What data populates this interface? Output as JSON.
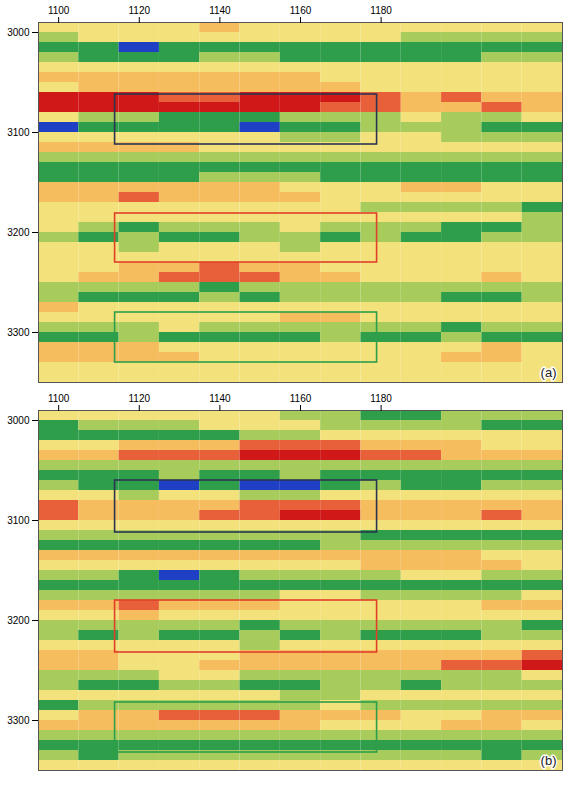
{
  "chart_data": [
    {
      "type": "heatmap",
      "title": "(a)",
      "x": [
        1100,
        1110,
        1120,
        1130,
        1140,
        1150,
        1160,
        1170,
        1180,
        1190,
        1200,
        1210,
        1220
      ],
      "y": [
        2995,
        3005,
        3015,
        3025,
        3035,
        3045,
        3055,
        3065,
        3075,
        3085,
        3095,
        3105,
        3115,
        3125,
        3135,
        3145,
        3155,
        3165,
        3175,
        3185,
        3195,
        3205,
        3215,
        3225,
        3235,
        3245,
        3255,
        3265,
        3275,
        3285,
        3295,
        3305,
        3315,
        3325,
        3335,
        3345
      ],
      "values": [
        [
          0,
          0,
          0,
          0,
          1,
          0,
          0,
          0,
          0,
          0,
          0,
          0,
          0
        ],
        [
          -1,
          0,
          0,
          0,
          0,
          0,
          0,
          0,
          0,
          -1,
          -1,
          -1,
          -1
        ],
        [
          -2,
          -2,
          -3,
          -2,
          -2,
          -2,
          -2,
          -2,
          -2,
          -2,
          -2,
          -2,
          -2
        ],
        [
          -1,
          -2,
          -2,
          -2,
          -1,
          -1,
          -2,
          -2,
          -2,
          -2,
          -2,
          -1,
          -1
        ],
        [
          0,
          0,
          0,
          0,
          0,
          0,
          0,
          0,
          0,
          0,
          0,
          0,
          0
        ],
        [
          1,
          1,
          1,
          1,
          1,
          1,
          1,
          0,
          0,
          0,
          0,
          0,
          0
        ],
        [
          0,
          1,
          1,
          1,
          1,
          1,
          1,
          1,
          0,
          0,
          0,
          0,
          0
        ],
        [
          3,
          3,
          3,
          2,
          2,
          3,
          3,
          3,
          2,
          1,
          2,
          1,
          1
        ],
        [
          3,
          3,
          3,
          3,
          3,
          3,
          3,
          2,
          2,
          1,
          1,
          2,
          1
        ],
        [
          0,
          -1,
          -1,
          -2,
          -2,
          -2,
          -1,
          -1,
          -1,
          0,
          -1,
          -1,
          0
        ],
        [
          -3,
          -2,
          -2,
          -2,
          -2,
          -3,
          -2,
          -2,
          -1,
          -1,
          -1,
          -2,
          -2
        ],
        [
          0,
          0,
          0,
          0,
          0,
          0,
          -1,
          -1,
          0,
          0,
          -1,
          -1,
          -1
        ],
        [
          1,
          1,
          1,
          1,
          0,
          0,
          0,
          0,
          0,
          0,
          0,
          0,
          0
        ],
        [
          -1,
          -1,
          -1,
          -1,
          -1,
          -1,
          -1,
          -1,
          -1,
          -1,
          -1,
          -1,
          -1
        ],
        [
          -2,
          -2,
          -2,
          -2,
          -2,
          -2,
          -2,
          -2,
          -2,
          -2,
          -2,
          -2,
          -2
        ],
        [
          -2,
          -2,
          -2,
          -2,
          -1,
          -1,
          -1,
          -2,
          -2,
          -2,
          -2,
          -2,
          -2
        ],
        [
          1,
          1,
          1,
          1,
          1,
          1,
          0,
          0,
          0,
          1,
          1,
          0,
          0
        ],
        [
          1,
          1,
          2,
          1,
          1,
          1,
          1,
          0,
          0,
          0,
          0,
          0,
          0
        ],
        [
          0,
          0,
          0,
          0,
          0,
          0,
          0,
          0,
          -1,
          -1,
          -1,
          -1,
          -2
        ],
        [
          0,
          0,
          0,
          0,
          0,
          0,
          0,
          0,
          0,
          0,
          0,
          0,
          -1
        ],
        [
          0,
          -1,
          -2,
          -1,
          -1,
          -1,
          0,
          -1,
          -1,
          -1,
          -2,
          -2,
          -1
        ],
        [
          -1,
          -2,
          -1,
          -2,
          -2,
          -1,
          -1,
          -2,
          -1,
          -2,
          -2,
          -1,
          -1
        ],
        [
          0,
          0,
          -1,
          0,
          0,
          0,
          -1,
          0,
          0,
          0,
          0,
          0,
          0
        ],
        [
          0,
          0,
          0,
          0,
          0,
          0,
          0,
          0,
          0,
          0,
          0,
          0,
          0
        ],
        [
          0,
          0,
          1,
          1,
          2,
          1,
          1,
          0,
          0,
          0,
          0,
          0,
          0
        ],
        [
          0,
          1,
          1,
          2,
          2,
          2,
          1,
          1,
          0,
          0,
          0,
          1,
          0
        ],
        [
          -1,
          -1,
          -1,
          -1,
          -2,
          -1,
          -1,
          -1,
          -1,
          -1,
          -1,
          -1,
          -1
        ],
        [
          -1,
          -2,
          -2,
          -2,
          -1,
          -2,
          -1,
          -1,
          -1,
          -1,
          -2,
          -2,
          -1
        ],
        [
          1,
          0,
          0,
          0,
          0,
          0,
          0,
          0,
          0,
          0,
          0,
          0,
          0
        ],
        [
          0,
          0,
          0,
          0,
          0,
          0,
          1,
          1,
          0,
          0,
          0,
          0,
          0
        ],
        [
          -1,
          -1,
          -1,
          0,
          -1,
          -1,
          -1,
          -1,
          -1,
          -1,
          -2,
          -1,
          -1
        ],
        [
          -2,
          -2,
          -1,
          -2,
          -2,
          -2,
          -2,
          -1,
          -2,
          -2,
          -1,
          -2,
          -2
        ],
        [
          1,
          1,
          1,
          0,
          0,
          0,
          0,
          0,
          0,
          0,
          0,
          1,
          0
        ],
        [
          1,
          1,
          1,
          1,
          0,
          0,
          0,
          0,
          0,
          0,
          1,
          1,
          0
        ],
        [
          0,
          0,
          0,
          0,
          0,
          0,
          0,
          0,
          0,
          0,
          0,
          0,
          0
        ],
        [
          0,
          0,
          0,
          0,
          0,
          0,
          0,
          0,
          0,
          0,
          0,
          0,
          0
        ]
      ],
      "zlim": [
        -3,
        3
      ],
      "xlim": [
        1095,
        1225
      ],
      "xticks": [
        1100,
        1120,
        1140,
        1160,
        1180
      ],
      "ylim": [
        2990,
        3350
      ],
      "yticks": [
        3000,
        3100,
        3200,
        3300
      ],
      "boxes": [
        {
          "x1": 1114,
          "x2": 1179,
          "y1": 3062,
          "y2": 3112,
          "color": "#2b3550"
        },
        {
          "x1": 1114,
          "x2": 1179,
          "y1": 3181,
          "y2": 3230,
          "color": "#e0402a"
        },
        {
          "x1": 1114,
          "x2": 1179,
          "y1": 3280,
          "y2": 3330,
          "color": "#2e9e4a"
        }
      ]
    },
    {
      "type": "heatmap",
      "title": "(b)",
      "x": [
        1100,
        1110,
        1120,
        1130,
        1140,
        1150,
        1160,
        1170,
        1180,
        1190,
        1200,
        1210,
        1220
      ],
      "y": [
        2995,
        3005,
        3015,
        3025,
        3035,
        3045,
        3055,
        3065,
        3075,
        3085,
        3095,
        3105,
        3115,
        3125,
        3135,
        3145,
        3155,
        3165,
        3175,
        3185,
        3195,
        3205,
        3215,
        3225,
        3235,
        3245,
        3255,
        3265,
        3275,
        3285,
        3295,
        3305,
        3315,
        3325,
        3335,
        3345
      ],
      "values": [
        [
          0,
          0,
          0,
          0,
          0,
          0,
          -1,
          -1,
          -2,
          -2,
          -1,
          -1,
          -1
        ],
        [
          -2,
          -1,
          -1,
          -1,
          0,
          0,
          0,
          -1,
          -1,
          -1,
          -1,
          -2,
          -2
        ],
        [
          -2,
          -2,
          -2,
          -2,
          -2,
          -1,
          -1,
          0,
          0,
          0,
          0,
          0,
          0
        ],
        [
          0,
          0,
          1,
          1,
          1,
          2,
          2,
          2,
          1,
          1,
          1,
          0,
          0
        ],
        [
          1,
          1,
          2,
          2,
          2,
          3,
          3,
          3,
          2,
          2,
          1,
          1,
          1
        ],
        [
          -1,
          -1,
          -1,
          -1,
          -1,
          -1,
          -1,
          -1,
          -1,
          -1,
          -1,
          -1,
          -1
        ],
        [
          -2,
          -2,
          -2,
          -1,
          -2,
          -2,
          -1,
          -2,
          -2,
          -2,
          -2,
          -2,
          -2
        ],
        [
          -1,
          -2,
          -2,
          -3,
          -2,
          -3,
          -3,
          -2,
          -1,
          -2,
          -2,
          -1,
          -1
        ],
        [
          0,
          0,
          -1,
          0,
          0,
          -1,
          -1,
          0,
          0,
          0,
          0,
          0,
          0
        ],
        [
          2,
          1,
          1,
          1,
          1,
          2,
          2,
          2,
          1,
          1,
          1,
          1,
          1
        ],
        [
          2,
          1,
          1,
          1,
          2,
          2,
          3,
          3,
          1,
          1,
          1,
          2,
          1
        ],
        [
          0,
          0,
          0,
          0,
          0,
          0,
          0,
          0,
          0,
          0,
          0,
          0,
          0
        ],
        [
          -1,
          -1,
          -1,
          -1,
          -1,
          -1,
          -1,
          -1,
          -2,
          -2,
          -2,
          -2,
          -2
        ],
        [
          -2,
          -2,
          -2,
          -2,
          -2,
          -2,
          -2,
          -1,
          -1,
          -1,
          -1,
          -1,
          -1
        ],
        [
          1,
          1,
          1,
          1,
          1,
          1,
          1,
          1,
          1,
          1,
          1,
          0,
          0
        ],
        [
          0,
          0,
          0,
          0,
          0,
          0,
          0,
          0,
          1,
          1,
          1,
          1,
          0
        ],
        [
          -1,
          -1,
          -2,
          -3,
          -2,
          -1,
          -1,
          -1,
          -1,
          0,
          0,
          -1,
          -1
        ],
        [
          -2,
          -2,
          -2,
          -2,
          -2,
          -2,
          -2,
          -2,
          -2,
          -2,
          -2,
          -2,
          -2
        ],
        [
          -1,
          -1,
          -1,
          -1,
          -1,
          -1,
          0,
          0,
          -1,
          -1,
          -1,
          -1,
          0
        ],
        [
          1,
          1,
          2,
          1,
          1,
          1,
          0,
          0,
          0,
          0,
          0,
          1,
          1
        ],
        [
          0,
          0,
          1,
          0,
          0,
          0,
          0,
          0,
          0,
          0,
          0,
          0,
          0
        ],
        [
          -1,
          -1,
          -1,
          -1,
          -1,
          -2,
          -1,
          -1,
          -1,
          -1,
          -1,
          -1,
          -2
        ],
        [
          -1,
          -2,
          -1,
          -2,
          -2,
          -1,
          -2,
          -1,
          -2,
          -2,
          -2,
          -1,
          -1
        ],
        [
          0,
          0,
          0,
          0,
          0,
          -1,
          0,
          0,
          0,
          0,
          0,
          0,
          0
        ],
        [
          1,
          1,
          0,
          0,
          0,
          1,
          1,
          1,
          1,
          1,
          1,
          1,
          2
        ],
        [
          1,
          1,
          0,
          0,
          1,
          1,
          1,
          1,
          1,
          1,
          2,
          2,
          3
        ],
        [
          -1,
          -1,
          -1,
          0,
          0,
          -1,
          -1,
          -1,
          -1,
          -1,
          -1,
          -1,
          0
        ],
        [
          -1,
          -2,
          -2,
          -1,
          -1,
          -2,
          -2,
          -1,
          -1,
          -2,
          -1,
          -1,
          -1
        ],
        [
          0,
          0,
          0,
          0,
          0,
          0,
          -1,
          -1,
          0,
          0,
          0,
          0,
          0
        ],
        [
          -2,
          -1,
          -1,
          -1,
          -1,
          -1,
          -1,
          0,
          -1,
          -1,
          -1,
          -1,
          -1
        ],
        [
          0,
          1,
          1,
          2,
          2,
          2,
          1,
          1,
          1,
          0,
          0,
          1,
          1
        ],
        [
          1,
          1,
          1,
          1,
          1,
          1,
          1,
          0,
          0,
          0,
          1,
          1,
          0
        ],
        [
          -1,
          -1,
          -1,
          -1,
          -1,
          -1,
          -1,
          -1,
          -1,
          -1,
          -1,
          -1,
          -1
        ],
        [
          -2,
          -2,
          -2,
          -2,
          -2,
          -2,
          -2,
          -2,
          -2,
          -2,
          -2,
          -2,
          -2
        ],
        [
          -1,
          -2,
          -1,
          -1,
          -1,
          -1,
          -1,
          -1,
          -1,
          -1,
          -1,
          -2,
          -1
        ],
        [
          0,
          0,
          0,
          0,
          0,
          0,
          0,
          0,
          0,
          0,
          0,
          0,
          0
        ]
      ],
      "zlim": [
        -3,
        3
      ],
      "xlim": [
        1095,
        1225
      ],
      "xticks": [
        1100,
        1120,
        1140,
        1160,
        1180
      ],
      "ylim": [
        2990,
        3350
      ],
      "yticks": [
        3000,
        3100,
        3200,
        3300
      ],
      "boxes": [
        {
          "x1": 1114,
          "x2": 1179,
          "y1": 3060,
          "y2": 3112,
          "color": "#2b3550"
        },
        {
          "x1": 1114,
          "x2": 1179,
          "y1": 3180,
          "y2": 3232,
          "color": "#e0402a"
        },
        {
          "x1": 1114,
          "x2": 1179,
          "y1": 3282,
          "y2": 3332,
          "color": "#2e9e4a"
        }
      ]
    }
  ]
}
